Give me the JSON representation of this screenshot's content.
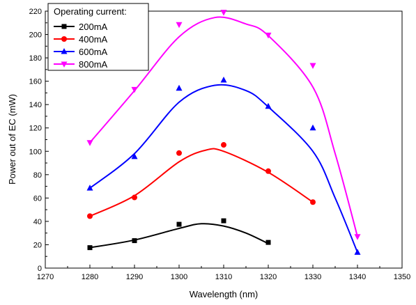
{
  "chart_data": {
    "type": "scatter",
    "xlabel": "Wavelength (nm)",
    "ylabel": "Power out of EC (mW)",
    "xlim": [
      1270,
      1350
    ],
    "ylim": [
      0,
      220
    ],
    "xticks": [
      1270,
      1280,
      1290,
      1300,
      1310,
      1320,
      1330,
      1340,
      1350
    ],
    "yticks": [
      0,
      20,
      40,
      60,
      80,
      100,
      120,
      140,
      160,
      180,
      200,
      220
    ],
    "grid": false,
    "legend": {
      "title": "Operating current:",
      "placement": "top-left"
    },
    "series": [
      {
        "name": "200mA",
        "color": "#000000",
        "marker": "square",
        "points": [
          [
            1280,
            17.5
          ],
          [
            1290,
            23.5
          ],
          [
            1300,
            37.5
          ],
          [
            1310,
            40.5
          ],
          [
            1320,
            22
          ]
        ],
        "fit": [
          [
            1280,
            17.5
          ],
          [
            1290,
            24
          ],
          [
            1300,
            34
          ],
          [
            1305,
            38
          ],
          [
            1310,
            36
          ],
          [
            1315,
            30
          ],
          [
            1320,
            21
          ]
        ]
      },
      {
        "name": "400mA",
        "color": "#ff0000",
        "marker": "circle",
        "points": [
          [
            1280,
            44.5
          ],
          [
            1290,
            60.5
          ],
          [
            1300,
            98.5
          ],
          [
            1310,
            105.5
          ],
          [
            1320,
            83
          ],
          [
            1330,
            56.5
          ]
        ],
        "fit": [
          [
            1280,
            44.5
          ],
          [
            1290,
            62
          ],
          [
            1300,
            91
          ],
          [
            1306,
            101
          ],
          [
            1310,
            100
          ],
          [
            1320,
            82
          ],
          [
            1330,
            56.5
          ]
        ]
      },
      {
        "name": "600mA",
        "color": "#0000ff",
        "marker": "triangle-up",
        "points": [
          [
            1280,
            68.5
          ],
          [
            1290,
            95.5
          ],
          [
            1300,
            154
          ],
          [
            1310,
            161
          ],
          [
            1320,
            138.5
          ],
          [
            1330,
            120
          ],
          [
            1340,
            13.5
          ]
        ],
        "fit": [
          [
            1280,
            68.5
          ],
          [
            1290,
            98
          ],
          [
            1300,
            142
          ],
          [
            1308,
            156.5
          ],
          [
            1315,
            152
          ],
          [
            1320,
            138
          ],
          [
            1330,
            100
          ],
          [
            1335,
            60
          ],
          [
            1340,
            13.5
          ]
        ]
      },
      {
        "name": "800mA",
        "color": "#ff00ff",
        "marker": "triangle-down",
        "points": [
          [
            1280,
            107.5
          ],
          [
            1290,
            153
          ],
          [
            1300,
            208.5
          ],
          [
            1310,
            219
          ],
          [
            1320,
            199.5
          ],
          [
            1330,
            173.5
          ],
          [
            1340,
            27
          ]
        ],
        "fit": [
          [
            1280,
            107.5
          ],
          [
            1290,
            152
          ],
          [
            1300,
            198
          ],
          [
            1308,
            214.5
          ],
          [
            1315,
            209
          ],
          [
            1320,
            199
          ],
          [
            1330,
            155
          ],
          [
            1335,
            98
          ],
          [
            1340,
            27
          ]
        ]
      }
    ]
  }
}
